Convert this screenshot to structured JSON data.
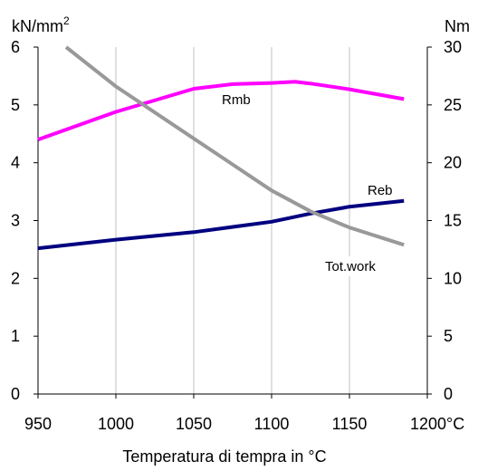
{
  "chart_data": {
    "type": "line",
    "xlabel": "Temperatura di tempra in °C",
    "ylabel_left_unit": "kN/mm",
    "ylabel_left_sup": "2",
    "ylabel_right": "Nm",
    "x_unit_suffix": "°C",
    "xlim": [
      950,
      1200
    ],
    "ylim_left": [
      0,
      6
    ],
    "ylim_right": [
      0,
      30
    ],
    "x_ticks": [
      950,
      1000,
      1050,
      1100,
      1150,
      1200
    ],
    "y_ticks_left": [
      0,
      1,
      2,
      3,
      4,
      5,
      6
    ],
    "y_ticks_right": [
      0,
      5,
      10,
      15,
      20,
      25,
      30
    ],
    "grid": "vertical",
    "series": [
      {
        "name": "Rmb",
        "axis": "left",
        "color": "#ff00ff",
        "points": [
          [
            950,
            4.4
          ],
          [
            1000,
            4.88
          ],
          [
            1050,
            5.28
          ],
          [
            1075,
            5.36
          ],
          [
            1100,
            5.38
          ],
          [
            1115,
            5.4
          ],
          [
            1125,
            5.37
          ],
          [
            1150,
            5.27
          ],
          [
            1185,
            5.1
          ]
        ]
      },
      {
        "name": "Reb",
        "axis": "left",
        "color": "#000080",
        "points": [
          [
            950,
            2.52
          ],
          [
            1000,
            2.67
          ],
          [
            1050,
            2.8
          ],
          [
            1100,
            2.98
          ],
          [
            1125,
            3.12
          ],
          [
            1150,
            3.24
          ],
          [
            1185,
            3.34
          ]
        ]
      },
      {
        "name": "Tot.work",
        "axis": "right",
        "color": "#999999",
        "points": [
          [
            968,
            30
          ],
          [
            1000,
            26.6
          ],
          [
            1050,
            22.1
          ],
          [
            1100,
            17.6
          ],
          [
            1125,
            15.8
          ],
          [
            1150,
            14.4
          ],
          [
            1185,
            12.9
          ]
        ]
      }
    ]
  }
}
